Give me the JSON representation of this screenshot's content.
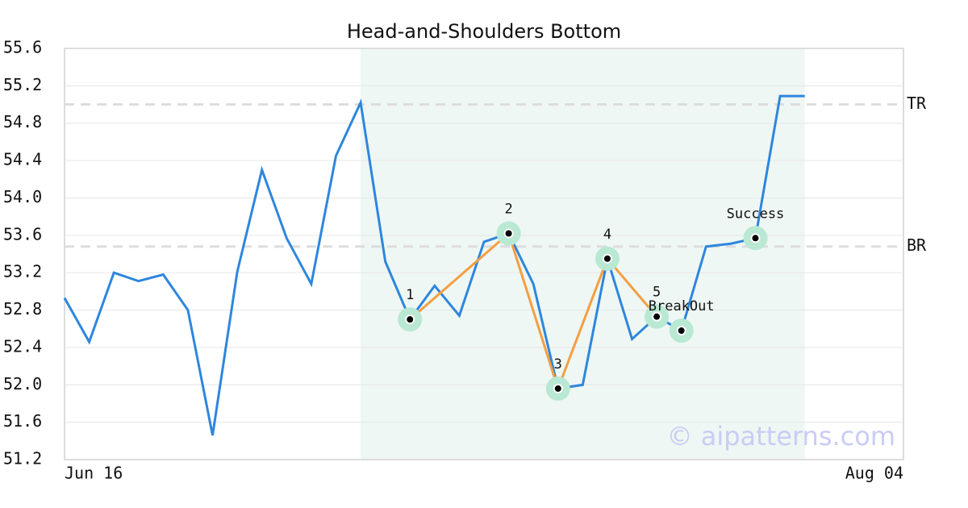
{
  "chart_data": {
    "type": "line",
    "title": "Head-and-Shoulders Bottom",
    "categories": [
      "Jun 16",
      null,
      null,
      null,
      null,
      null,
      null,
      null,
      null,
      null,
      null,
      null,
      null,
      null,
      null,
      null,
      null,
      null,
      null,
      null,
      null,
      null,
      null,
      null,
      null,
      null,
      null,
      null,
      null,
      null,
      null,
      null,
      null,
      null,
      "Aug 04"
    ],
    "series": [
      {
        "color": "#2e86de",
        "values": [
          52.93,
          52.46,
          53.2,
          53.11,
          53.18,
          52.8,
          51.46,
          53.21,
          54.3,
          53.57,
          53.08,
          54.45,
          55.02,
          53.32,
          52.7,
          53.06,
          52.74,
          53.53,
          53.62,
          53.08,
          51.96,
          52.0,
          53.35,
          52.49,
          52.73,
          52.58,
          53.48,
          53.51,
          53.57,
          55.09,
          55.09,
          null,
          null,
          null,
          null
        ]
      }
    ],
    "ylim": [
      51.2,
      55.6
    ],
    "yticks": [
      51.2,
      51.6,
      {
        "value": 52,
        "label": "52.0"
      },
      52.4,
      52.8,
      53.2,
      53.6,
      {
        "value": 54,
        "label": "54.0"
      },
      54.4,
      54.8,
      55.2,
      55.6
    ],
    "grid": true,
    "highlight": [
      12,
      30
    ],
    "highlight_color": "#eef7f3",
    "hlines": [
      {
        "label": "TR",
        "value": 55.0
      },
      {
        "label": "BR",
        "value": 53.48
      }
    ],
    "pattern": {
      "color": "#f59e42",
      "points": [
        14,
        18,
        20,
        22,
        24
      ],
      "labels": [
        "1",
        "2",
        "3",
        "4",
        "5"
      ]
    },
    "signals": [
      {
        "label": "BreakOut",
        "index": 25
      },
      {
        "label": "Success",
        "index": 28
      }
    ],
    "marker_color": "#b9e8d3",
    "watermark": "© aipatterns.com"
  }
}
